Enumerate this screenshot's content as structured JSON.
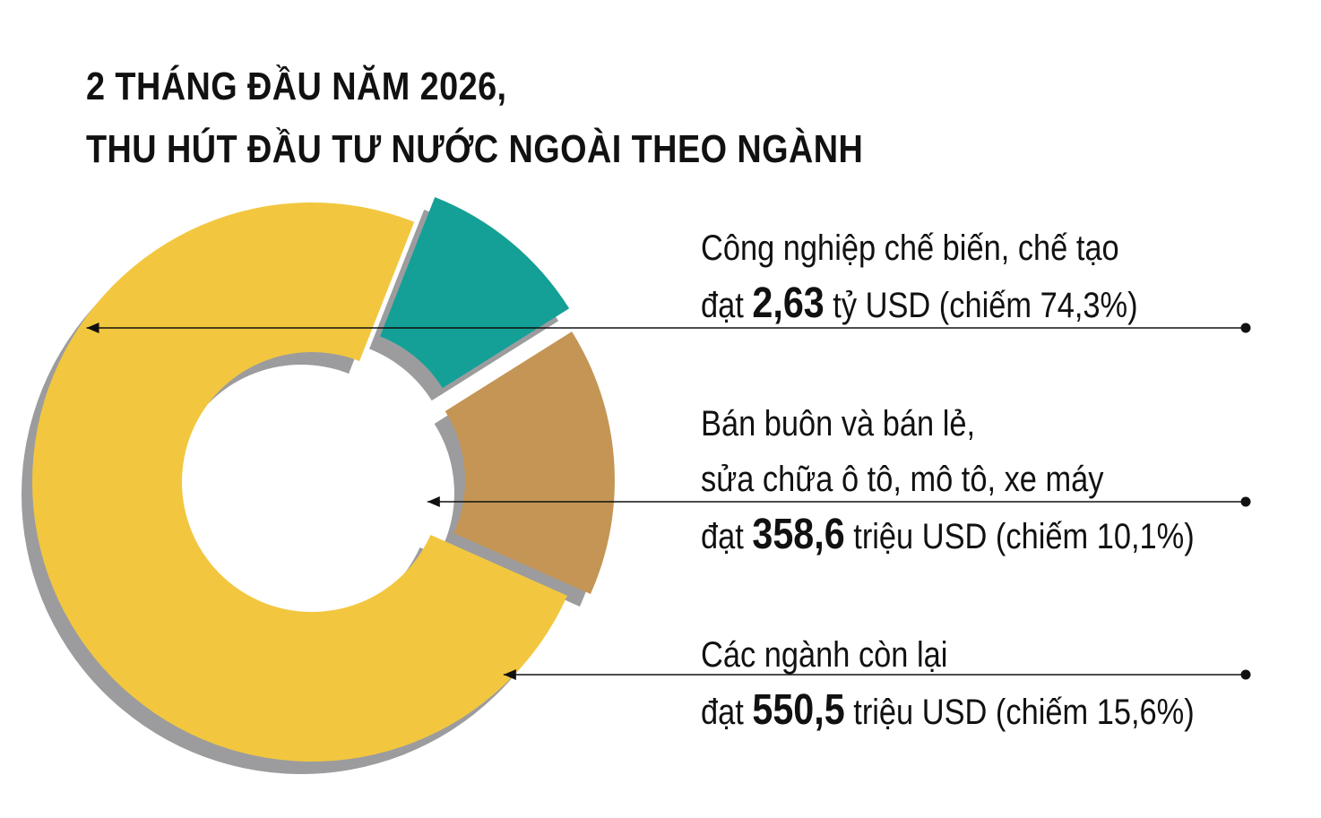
{
  "title": {
    "line1": "2 THÁNG ĐẦU NĂM 2026,",
    "line2": "THU HÚT ĐẦU TƯ NƯỚC NGOÀI THEO NGÀNH"
  },
  "chart_data": {
    "type": "pie",
    "title": "2 THÁNG ĐẦU NĂM 2026, THU HÚT ĐẦU TƯ NƯỚC NGOÀI THEO NGÀNH",
    "categories": [
      "Công nghiệp chế biến, chế tạo",
      "Bán buôn và bán lẻ, sửa chữa ô tô, mô tô, xe máy",
      "Các ngành còn lại"
    ],
    "values": [
      74.3,
      10.1,
      15.6
    ],
    "colors": [
      "#f2c73f",
      "#14a096",
      "#c49554"
    ],
    "shadow_color": "#9c9c9f",
    "legend_placement": "right",
    "labels": [
      {
        "line1": "Công nghiệp chế biến, chế tạo",
        "prefix": "đạt",
        "amount": "2,63",
        "suffix": "tỷ USD (chiếm 74,3%)"
      },
      {
        "line1": "Bán buôn và bán lẻ,",
        "line2": "sửa chữa ô tô, mô tô, xe máy",
        "prefix": "đạt",
        "amount": "358,6",
        "suffix": "triệu USD (chiếm 10,1%)"
      },
      {
        "line1": "Các ngành còn lại",
        "prefix": "đạt",
        "amount": "550,5",
        "suffix": "triệu USD (chiếm 15,6%)"
      }
    ]
  }
}
